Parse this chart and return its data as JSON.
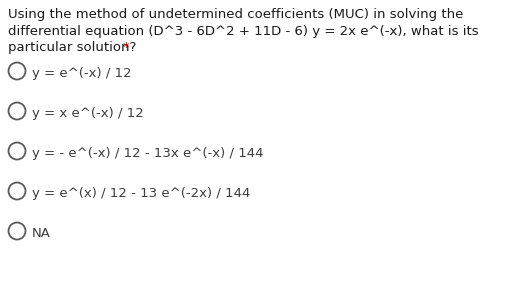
{
  "background_color": "#ffffff",
  "question_line1": "Using the method of undetermined coefficients (MUC) in solving the",
  "question_line2": "differential equation (D^3 - 6D^2 + 11D - 6) y = 2x e^(-x), what is its",
  "question_line3_main": "particular solution? ",
  "question_line3_asterisk": "*",
  "question_color": "#1a1a1a",
  "asterisk_color": "#cc0000",
  "options": [
    "y = e^(-x) / 12",
    "y = x e^(-x) / 12",
    "y = - e^(-x) / 12 - 13x e^(-x) / 144",
    "y = e^(x) / 12 - 13 e^(-2x) / 144",
    "NA"
  ],
  "option_color": "#3d3d3d",
  "circle_color": "#5a5a5a",
  "font_family": "Arial",
  "font_size_question": 9.5,
  "font_size_options": 9.5,
  "fig_width": 5.22,
  "fig_height": 3.04,
  "dpi": 100
}
